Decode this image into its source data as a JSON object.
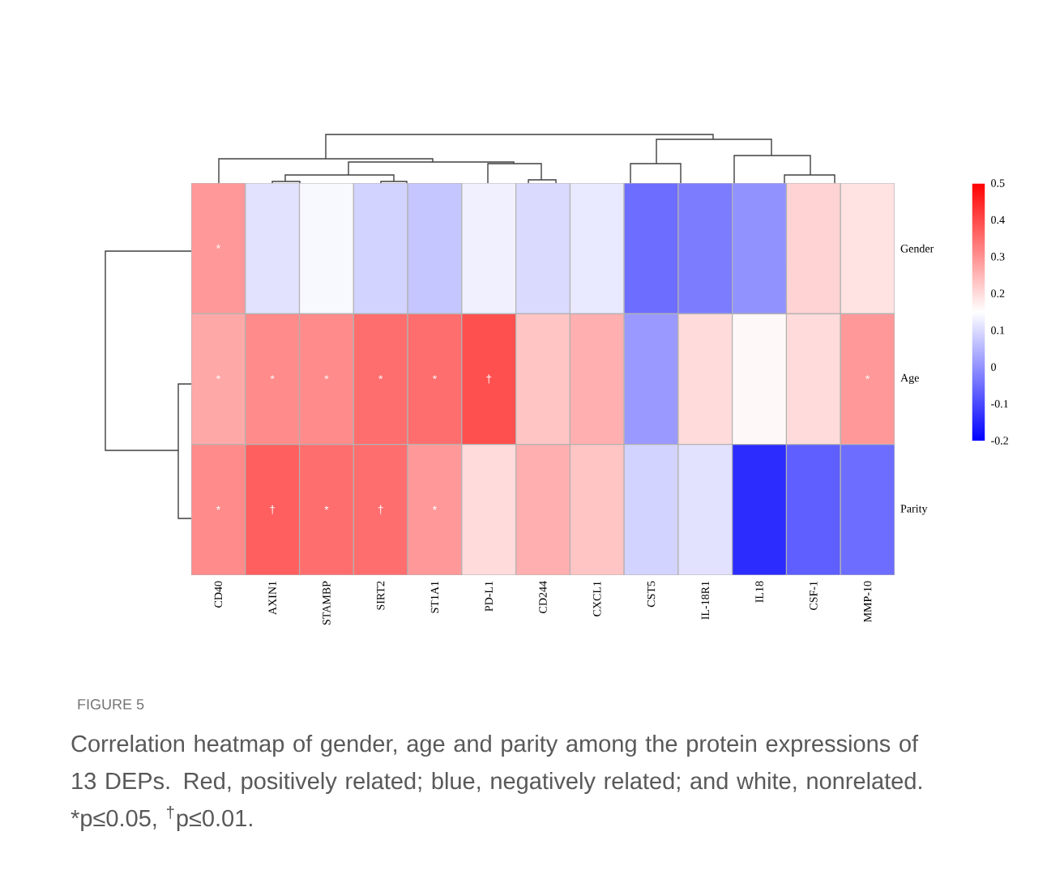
{
  "chart_data": {
    "type": "heatmap",
    "categories": [
      "CD40",
      "AXIN1",
      "STAMBP",
      "SIRT2",
      "ST1A1",
      "PD-L1",
      "CD244",
      "CXCL1",
      "CST5",
      "IL-18R1",
      "IL18",
      "CSF-1",
      "MMP-10"
    ],
    "y_categories": [
      "Gender",
      "Age",
      "Parity"
    ],
    "cells": [
      [
        0.29,
        0.11,
        0.14,
        0.09,
        0.07,
        0.13,
        0.1,
        0.12,
        -0.05,
        -0.03,
        0.0,
        0.21,
        0.19
      ],
      [
        0.27,
        0.31,
        0.31,
        0.35,
        0.35,
        0.39,
        0.23,
        0.26,
        0.01,
        0.2,
        0.16,
        0.2,
        0.29
      ],
      [
        0.31,
        0.37,
        0.35,
        0.35,
        0.29,
        0.2,
        0.26,
        0.23,
        0.09,
        0.11,
        -0.14,
        -0.07,
        -0.05
      ]
    ],
    "cell_labels": [
      [
        "*",
        null,
        null,
        null,
        null,
        null,
        null,
        null,
        null,
        null,
        null,
        null,
        null
      ],
      [
        "*",
        "*",
        "*",
        "*",
        "*",
        "†",
        null,
        null,
        null,
        null,
        null,
        null,
        "*"
      ],
      [
        "*",
        "†",
        "*",
        "†",
        "*",
        null,
        null,
        null,
        null,
        null,
        null,
        null,
        null
      ]
    ],
    "clim": [
      -0.2,
      0.5
    ],
    "cticks": [
      -0.2,
      -0.1,
      0,
      0.1,
      0.2,
      0.3,
      0.4,
      0.5
    ],
    "annotations": [
      "FIGURE 5",
      "Correlation heatmap of gender, age and parity among the protein expressions of 13 DEPs. Red, positively related; blue, negatively related; and white, nonrelated. *p≤0.05, $^{†}$p≤0.01."
    ]
  }
}
